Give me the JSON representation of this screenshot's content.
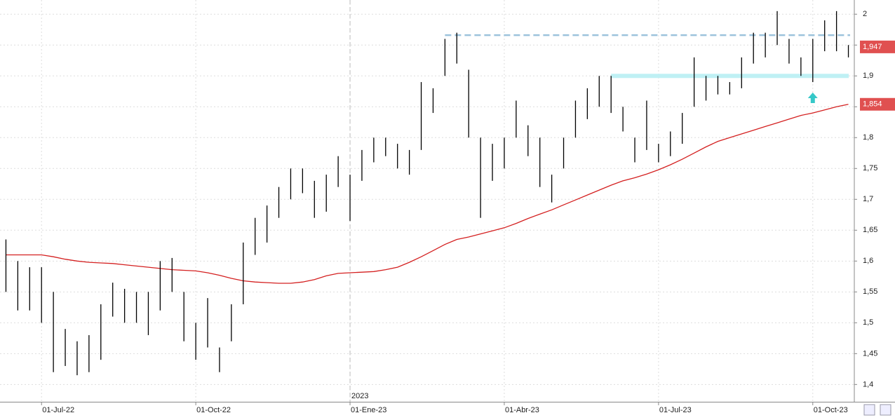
{
  "chart_data": {
    "type": "hilo",
    "categories": [
      null,
      null,
      null,
      "01-Jul-22",
      null,
      null,
      null,
      null,
      null,
      null,
      null,
      null,
      null,
      null,
      null,
      null,
      "01-Oct-22",
      null,
      null,
      null,
      null,
      null,
      null,
      null,
      null,
      null,
      null,
      null,
      null,
      "01-Ene-23",
      null,
      null,
      null,
      null,
      null,
      null,
      null,
      null,
      null,
      null,
      null,
      null,
      "01-Abr-23",
      null,
      null,
      null,
      null,
      null,
      null,
      null,
      null,
      null,
      null,
      null,
      null,
      "01-Jul-23",
      null,
      null,
      null,
      null,
      null,
      null,
      null,
      null,
      null,
      null,
      null,
      null,
      "01-Oct-23",
      null,
      null,
      null
    ],
    "high": [
      1.635,
      1.6,
      1.59,
      1.59,
      1.55,
      1.49,
      1.47,
      1.48,
      1.53,
      1.565,
      1.555,
      1.55,
      1.55,
      1.6,
      1.605,
      1.55,
      1.5,
      1.54,
      1.46,
      1.53,
      1.63,
      1.67,
      1.69,
      1.72,
      1.75,
      1.75,
      1.73,
      1.74,
      1.77,
      1.74,
      1.78,
      1.8,
      1.8,
      1.79,
      1.78,
      1.89,
      1.88,
      1.96,
      1.97,
      1.91,
      1.8,
      1.79,
      1.8,
      1.86,
      1.82,
      1.8,
      1.74,
      1.8,
      1.86,
      1.88,
      1.9,
      1.9,
      1.85,
      1.8,
      1.86,
      1.79,
      1.81,
      1.84,
      1.93,
      1.9,
      1.9,
      1.89,
      1.93,
      1.97,
      1.97,
      2.005,
      1.96,
      1.93,
      1.96,
      1.99,
      2.005,
      1.95
    ],
    "low": [
      1.55,
      1.52,
      1.52,
      1.5,
      1.42,
      1.43,
      1.415,
      1.42,
      1.44,
      1.51,
      1.5,
      1.5,
      1.48,
      1.52,
      1.55,
      1.47,
      1.44,
      1.46,
      1.42,
      1.47,
      1.53,
      1.61,
      1.63,
      1.67,
      1.7,
      1.71,
      1.67,
      1.68,
      1.72,
      1.665,
      1.73,
      1.76,
      1.77,
      1.75,
      1.74,
      1.78,
      1.84,
      1.9,
      1.92,
      1.8,
      1.67,
      1.73,
      1.75,
      1.8,
      1.77,
      1.72,
      1.695,
      1.75,
      1.8,
      1.83,
      1.85,
      1.84,
      1.81,
      1.76,
      1.78,
      1.76,
      1.77,
      1.79,
      1.85,
      1.86,
      1.87,
      1.87,
      1.88,
      1.92,
      1.93,
      1.95,
      1.92,
      1.9,
      1.89,
      1.94,
      1.94,
      1.93
    ],
    "bar_color": "#000000",
    "ma": {
      "color": "#d42020",
      "values": [
        1.61,
        1.61,
        1.61,
        1.61,
        1.607,
        1.603,
        1.6,
        1.598,
        1.597,
        1.596,
        1.594,
        1.592,
        1.59,
        1.588,
        1.586,
        1.585,
        1.584,
        1.581,
        1.577,
        1.572,
        1.568,
        1.566,
        1.565,
        1.564,
        1.564,
        1.566,
        1.57,
        1.576,
        1.58,
        1.581,
        1.582,
        1.583,
        1.586,
        1.59,
        1.598,
        1.607,
        1.617,
        1.627,
        1.635,
        1.639,
        1.644,
        1.649,
        1.654,
        1.661,
        1.669,
        1.676,
        1.683,
        1.691,
        1.699,
        1.707,
        1.715,
        1.723,
        1.73,
        1.735,
        1.741,
        1.748,
        1.756,
        1.765,
        1.775,
        1.785,
        1.794,
        1.8,
        1.806,
        1.812,
        1.818,
        1.824,
        1.83,
        1.836,
        1.84,
        1.845,
        1.85,
        1.854
      ]
    },
    "ylim": [
      1.372,
      2.023
    ],
    "yticks": [
      {
        "value": 1.4,
        "label": "1,4"
      },
      {
        "value": 1.45,
        "label": "1,45"
      },
      {
        "value": 1.5,
        "label": "1,5"
      },
      {
        "value": 1.55,
        "label": "1,55"
      },
      {
        "value": 1.6,
        "label": "1,6"
      },
      {
        "value": 1.65,
        "label": "1,65"
      },
      {
        "value": 1.7,
        "label": "1,7"
      },
      {
        "value": 1.75,
        "label": "1,75"
      },
      {
        "value": 1.8,
        "label": "1,8"
      },
      {
        "value": 1.85,
        "label": "1,85"
      },
      {
        "value": 1.9,
        "label": "1,9"
      },
      {
        "value": 1.95,
        "label": "1,95"
      },
      2
    ],
    "grid": true,
    "year_marker": {
      "label": "2023",
      "index": 29
    },
    "price_tags": [
      {
        "value": 1.947,
        "label": "1,947",
        "color": "#e05050"
      },
      {
        "value": 1.854,
        "label": "1,854",
        "color": "#e05050"
      }
    ],
    "hlines": [
      {
        "value": 1.966,
        "from": 37,
        "color": "#9cc3dc",
        "style": "dashed"
      },
      {
        "value": 1.9,
        "from": 51,
        "color": "#bff0f4",
        "style": "band"
      }
    ],
    "arrow": {
      "value": 1.864,
      "index": 68,
      "color": "#35c8c8"
    }
  }
}
